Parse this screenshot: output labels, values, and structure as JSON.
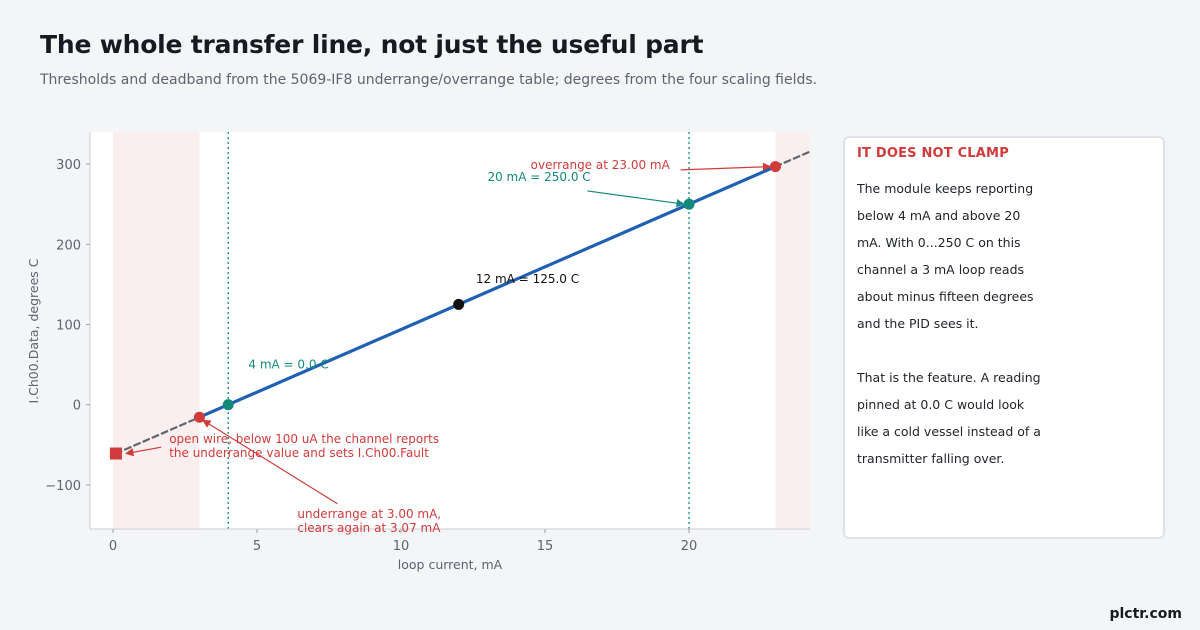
{
  "header": {
    "title": "The whole transfer line, not just the useful part",
    "subtitle": "Thresholds and deadband from the 5069-IF8 underrange/overrange table; degrees from the four scaling fields."
  },
  "sidebar": {
    "heading": "IT DOES NOT CLAMP",
    "paragraph1": "The module keeps reporting below 4 mA and above 20 mA. With 0...250 C on this channel a 3 mA loop reads about minus fifteen degrees and the PID sees it.",
    "paragraph2": "That is the feature. A reading pinned at 0.0 C would look like a cold vessel instead of a transmitter falling over."
  },
  "brand": "plctr.com",
  "colors": {
    "line": "#1f5fb4",
    "dashed": "#5f6470",
    "red": "#d23b3b",
    "teal": "#12897a",
    "black": "#111111",
    "band": "#fbeeee"
  },
  "chart_data": {
    "type": "line",
    "title": "",
    "xlabel": "loop current, mA",
    "ylabel": "I.Ch00.Data, degrees C",
    "xlim": [
      -0.8,
      24.2
    ],
    "ylim": [
      -155,
      340
    ],
    "xticks": [
      0,
      5,
      10,
      15,
      20
    ],
    "yticks": [
      -100,
      0,
      100,
      200,
      300
    ],
    "shaded_regions": [
      {
        "x0": 0,
        "x1": 3
      },
      {
        "x0": 23,
        "x1": 24.2
      }
    ],
    "vlines": [
      4,
      20
    ],
    "series": [
      {
        "style": "dashed",
        "x": [
          0.1,
          3
        ],
        "y": [
          -60.9,
          -15.6
        ]
      },
      {
        "style": "solid",
        "x": [
          3,
          23
        ],
        "y": [
          -15.6,
          296.9
        ]
      },
      {
        "style": "dashed",
        "x": [
          23,
          24.2
        ],
        "y": [
          296.9,
          315.6
        ]
      }
    ],
    "points": [
      {
        "x": 0.1,
        "y": -60.9,
        "marker": "square",
        "color": "red"
      },
      {
        "x": 3,
        "y": -15.6,
        "marker": "circle",
        "color": "red"
      },
      {
        "x": 4,
        "y": 0,
        "marker": "circle",
        "color": "teal"
      },
      {
        "x": 12,
        "y": 125,
        "marker": "circle",
        "color": "black"
      },
      {
        "x": 20,
        "y": 250,
        "marker": "circle",
        "color": "teal"
      },
      {
        "x": 23,
        "y": 296.9,
        "marker": "circle",
        "color": "red"
      }
    ],
    "annotations": [
      {
        "lines": [
          "open wire, below 100 uA the channel reports",
          "the underrange value and sets I.Ch00.Fault"
        ],
        "color": "red",
        "tx": 1.95,
        "ty": -48,
        "ax": 0.1,
        "ay": -60.9,
        "arrow": true
      },
      {
        "lines": [
          "underrange at 3.00 mA,",
          "clears again at 3.07 mA"
        ],
        "color": "red",
        "tx": 6.4,
        "ty": -141,
        "ax": 3.05,
        "ay": -15.6,
        "arrow": true
      },
      {
        "lines": [
          "4 mA = 0.0 C"
        ],
        "color": "teal",
        "tx": 4.7,
        "ty": 45,
        "arrow": false
      },
      {
        "lines": [
          "12 mA = 125.0 C"
        ],
        "color": "black",
        "tx": 12.6,
        "ty": 152,
        "arrow": false
      },
      {
        "lines": [
          "20 mA = 250.0 C"
        ],
        "color": "teal",
        "tx": 13.0,
        "ty": 279,
        "ax": 20,
        "ay": 250,
        "arrow": true
      },
      {
        "lines": [
          "overrange at 23.00 mA"
        ],
        "color": "red",
        "tx": 14.5,
        "ty": 294,
        "ax": 23,
        "ay": 296.9,
        "arrow": true
      }
    ]
  }
}
